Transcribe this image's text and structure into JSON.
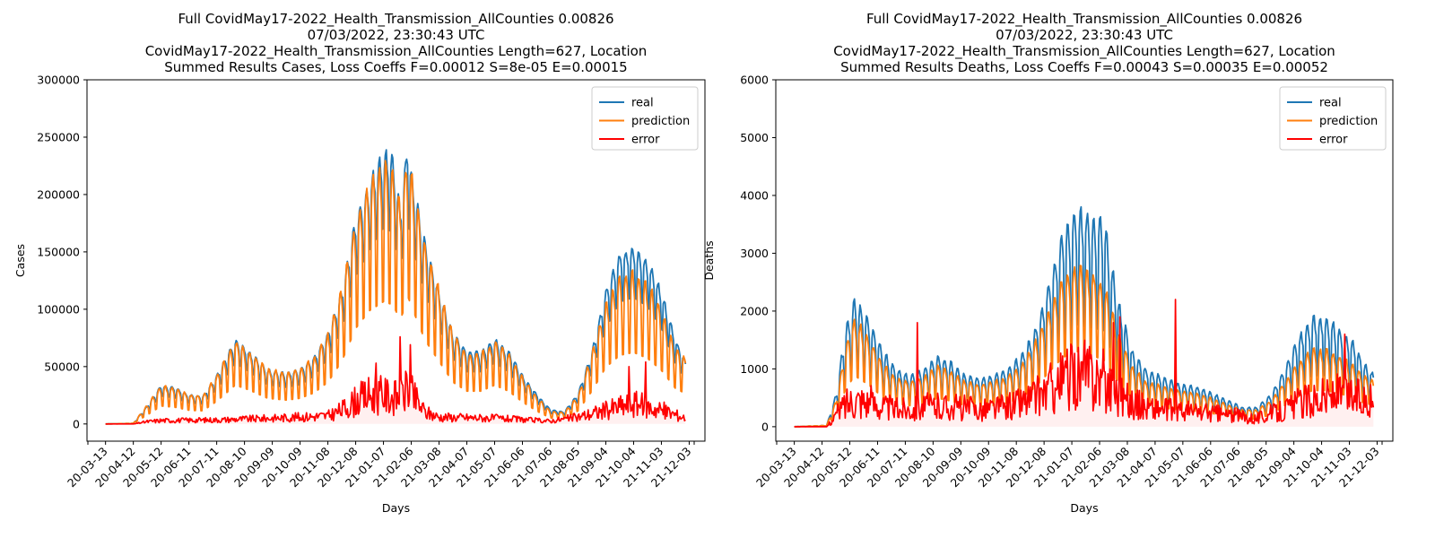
{
  "chart_data": [
    {
      "type": "line",
      "title_lines": [
        "Full CovidMay17-2022_Health_Transmission_AllCounties 0.00826",
        "07/03/2022, 23:30:43 UTC",
        "CovidMay17-2022_Health_Transmission_AllCounties Length=627, Location",
        "Summed Results Cases, Loss Coeffs F=0.00012 S=8e-05 E=0.00015"
      ],
      "xlabel": "Days",
      "ylabel": "Cases",
      "ylim": [
        -15000,
        300000
      ],
      "yticks": [
        "0",
        "50000",
        "100000",
        "150000",
        "200000",
        "250000",
        "300000"
      ],
      "xticks": [
        "20-03-13",
        "20-04-12",
        "20-05-12",
        "20-06-11",
        "20-07-11",
        "20-08-10",
        "20-09-09",
        "20-10-09",
        "20-11-08",
        "20-12-08",
        "21-01-07",
        "21-02-06",
        "21-03-08",
        "21-04-07",
        "21-05-07",
        "21-06-06",
        "21-07-06",
        "21-08-05",
        "21-09-04",
        "21-10-04",
        "21-11-03",
        "21-12-03"
      ],
      "x_range_days": [
        -20,
        647
      ],
      "length": 627,
      "legend": [
        "real",
        "prediction",
        "error"
      ],
      "legend_position": "upper right",
      "colors": {
        "real": "#1f77b4",
        "prediction": "#ff7f0e",
        "error": "#ff0000"
      },
      "series": [
        {
          "name": "real",
          "anchors": [
            [
              0,
              0
            ],
            [
              30,
              500
            ],
            [
              45,
              15000
            ],
            [
              60,
              32000
            ],
            [
              75,
              30000
            ],
            [
              90,
              24000
            ],
            [
              105,
              23000
            ],
            [
              120,
              40000
            ],
            [
              140,
              70000
            ],
            [
              155,
              60000
            ],
            [
              175,
              45000
            ],
            [
              195,
              42000
            ],
            [
              210,
              45000
            ],
            [
              225,
              55000
            ],
            [
              240,
              75000
            ],
            [
              255,
              110000
            ],
            [
              270,
              170000
            ],
            [
              285,
              200000
            ],
            [
              300,
              225000
            ],
            [
              310,
              220000
            ],
            [
              318,
              180000
            ],
            [
              322,
              200000
            ],
            [
              326,
              235000
            ],
            [
              332,
              200000
            ],
            [
              345,
              150000
            ],
            [
              360,
              110000
            ],
            [
              375,
              75000
            ],
            [
              390,
              60000
            ],
            [
              405,
              60000
            ],
            [
              420,
              70000
            ],
            [
              435,
              60000
            ],
            [
              450,
              40000
            ],
            [
              465,
              25000
            ],
            [
              480,
              12000
            ],
            [
              495,
              10000
            ],
            [
              510,
              25000
            ],
            [
              525,
              60000
            ],
            [
              540,
              110000
            ],
            [
              555,
              140000
            ],
            [
              570,
              145000
            ],
            [
              585,
              135000
            ],
            [
              600,
              110000
            ],
            [
              615,
              70000
            ],
            [
              627,
              50000
            ]
          ],
          "weekly_amp": 0.15
        },
        {
          "name": "prediction",
          "anchors": [
            [
              0,
              0
            ],
            [
              30,
              500
            ],
            [
              45,
              15000
            ],
            [
              60,
              30000
            ],
            [
              75,
              28000
            ],
            [
              90,
              23000
            ],
            [
              105,
              22000
            ],
            [
              120,
              38000
            ],
            [
              140,
              65000
            ],
            [
              155,
              57000
            ],
            [
              175,
              43000
            ],
            [
              195,
              40000
            ],
            [
              210,
              43000
            ],
            [
              225,
              52000
            ],
            [
              240,
              70000
            ],
            [
              255,
              105000
            ],
            [
              270,
              160000
            ],
            [
              285,
              190000
            ],
            [
              300,
              205000
            ],
            [
              310,
              200000
            ],
            [
              318,
              175000
            ],
            [
              322,
              190000
            ],
            [
              326,
              215000
            ],
            [
              332,
              190000
            ],
            [
              345,
              140000
            ],
            [
              360,
              105000
            ],
            [
              375,
              70000
            ],
            [
              390,
              55000
            ],
            [
              405,
              55000
            ],
            [
              420,
              65000
            ],
            [
              435,
              55000
            ],
            [
              450,
              37000
            ],
            [
              465,
              22000
            ],
            [
              480,
              10000
            ],
            [
              495,
              9000
            ],
            [
              510,
              22000
            ],
            [
              525,
              55000
            ],
            [
              540,
              95000
            ],
            [
              555,
              115000
            ],
            [
              570,
              120000
            ],
            [
              585,
              110000
            ],
            [
              600,
              90000
            ],
            [
              615,
              60000
            ],
            [
              627,
              50000
            ]
          ],
          "weekly_amp": 0.3
        },
        {
          "name": "error",
          "anchors": [
            [
              0,
              0
            ],
            [
              30,
              0
            ],
            [
              45,
              2000
            ],
            [
              60,
              3000
            ],
            [
              120,
              3500
            ],
            [
              180,
              5000
            ],
            [
              240,
              7000
            ],
            [
              255,
              12000
            ],
            [
              270,
              20000
            ],
            [
              285,
              25000
            ],
            [
              300,
              25000
            ],
            [
              318,
              22000
            ],
            [
              326,
              30000
            ],
            [
              345,
              10000
            ],
            [
              360,
              6000
            ],
            [
              420,
              5000
            ],
            [
              480,
              2500
            ],
            [
              510,
              6000
            ],
            [
              540,
              12000
            ],
            [
              570,
              18000
            ],
            [
              600,
              12000
            ],
            [
              627,
              5000
            ]
          ],
          "spikes": [
            [
              292,
              53000
            ],
            [
              318,
              76000
            ],
            [
              329,
              69000
            ],
            [
              325,
              43000
            ],
            [
              565,
              50000
            ],
            [
              583,
              54000
            ]
          ]
        }
      ]
    },
    {
      "type": "line",
      "title_lines": [
        "Full CovidMay17-2022_Health_Transmission_AllCounties 0.00826",
        "07/03/2022, 23:30:43 UTC",
        "CovidMay17-2022_Health_Transmission_AllCounties Length=627, Location",
        "Summed Results Deaths, Loss Coeffs F=0.00043 S=0.00035 E=0.00052"
      ],
      "xlabel": "Days",
      "ylabel": "Deaths",
      "ylim": [
        -250,
        6000
      ],
      "yticks": [
        "0",
        "1000",
        "2000",
        "3000",
        "4000",
        "5000",
        "6000"
      ],
      "xticks": [
        "20-03-13",
        "20-04-12",
        "20-05-12",
        "20-06-11",
        "20-07-11",
        "20-08-10",
        "20-09-09",
        "20-10-09",
        "20-11-08",
        "20-12-08",
        "21-01-07",
        "21-02-06",
        "21-03-08",
        "21-04-07",
        "21-05-07",
        "21-06-06",
        "21-07-06",
        "21-08-05",
        "21-09-04",
        "21-10-04",
        "21-11-03",
        "21-12-03"
      ],
      "x_range_days": [
        -20,
        647
      ],
      "length": 627,
      "legend": [
        "real",
        "prediction",
        "error"
      ],
      "legend_position": "upper right",
      "colors": {
        "real": "#1f77b4",
        "prediction": "#ff7f0e",
        "error": "#ff0000"
      },
      "series": [
        {
          "name": "real",
          "anchors": [
            [
              0,
              0
            ],
            [
              35,
              20
            ],
            [
              45,
              500
            ],
            [
              55,
              1500
            ],
            [
              65,
              2000
            ],
            [
              80,
              1700
            ],
            [
              95,
              1200
            ],
            [
              110,
              900
            ],
            [
              125,
              800
            ],
            [
              140,
              900
            ],
            [
              155,
              1100
            ],
            [
              170,
              1000
            ],
            [
              185,
              800
            ],
            [
              200,
              750
            ],
            [
              215,
              800
            ],
            [
              230,
              900
            ],
            [
              245,
              1100
            ],
            [
              260,
              1500
            ],
            [
              275,
              2200
            ],
            [
              290,
              3000
            ],
            [
              305,
              3400
            ],
            [
              320,
              3300
            ],
            [
              335,
              3200
            ],
            [
              350,
              2000
            ],
            [
              365,
              1200
            ],
            [
              380,
              900
            ],
            [
              395,
              800
            ],
            [
              410,
              700
            ],
            [
              425,
              650
            ],
            [
              440,
              600
            ],
            [
              455,
              500
            ],
            [
              470,
              400
            ],
            [
              485,
              300
            ],
            [
              500,
              300
            ],
            [
              515,
              500
            ],
            [
              530,
              900
            ],
            [
              545,
              1400
            ],
            [
              560,
              1700
            ],
            [
              575,
              1700
            ],
            [
              590,
              1500
            ],
            [
              605,
              1300
            ],
            [
              615,
              1000
            ],
            [
              627,
              800
            ]
          ],
          "weekly_amp": 0.3
        },
        {
          "name": "prediction",
          "anchors": [
            [
              0,
              0
            ],
            [
              35,
              20
            ],
            [
              45,
              400
            ],
            [
              55,
              1200
            ],
            [
              65,
              1700
            ],
            [
              80,
              1400
            ],
            [
              95,
              1000
            ],
            [
              110,
              750
            ],
            [
              125,
              700
            ],
            [
              140,
              780
            ],
            [
              155,
              950
            ],
            [
              170,
              850
            ],
            [
              185,
              700
            ],
            [
              200,
              650
            ],
            [
              215,
              700
            ],
            [
              230,
              780
            ],
            [
              245,
              950
            ],
            [
              260,
              1300
            ],
            [
              275,
              1800
            ],
            [
              290,
              2300
            ],
            [
              305,
              2500
            ],
            [
              320,
              2400
            ],
            [
              335,
              2200
            ],
            [
              350,
              1500
            ],
            [
              365,
              950
            ],
            [
              380,
              700
            ],
            [
              395,
              650
            ],
            [
              410,
              580
            ],
            [
              425,
              540
            ],
            [
              440,
              500
            ],
            [
              455,
              420
            ],
            [
              470,
              330
            ],
            [
              485,
              260
            ],
            [
              500,
              260
            ],
            [
              515,
              400
            ],
            [
              530,
              700
            ],
            [
              545,
              1000
            ],
            [
              560,
              1200
            ],
            [
              575,
              1200
            ],
            [
              590,
              1100
            ],
            [
              605,
              950
            ],
            [
              615,
              800
            ],
            [
              627,
              700
            ]
          ],
          "weekly_amp": 0.3
        },
        {
          "name": "error",
          "anchors": [
            [
              0,
              0
            ],
            [
              35,
              0
            ],
            [
              45,
              200
            ],
            [
              55,
              400
            ],
            [
              65,
              500
            ],
            [
              80,
              450
            ],
            [
              95,
              350
            ],
            [
              110,
              300
            ],
            [
              140,
              350
            ],
            [
              170,
              350
            ],
            [
              200,
              300
            ],
            [
              230,
              350
            ],
            [
              260,
              500
            ],
            [
              290,
              800
            ],
            [
              305,
              900
            ],
            [
              320,
              900
            ],
            [
              335,
              800
            ],
            [
              350,
              600
            ],
            [
              365,
              400
            ],
            [
              395,
              300
            ],
            [
              440,
              250
            ],
            [
              470,
              200
            ],
            [
              500,
              150
            ],
            [
              530,
              300
            ],
            [
              560,
              500
            ],
            [
              590,
              550
            ],
            [
              615,
              500
            ],
            [
              627,
              400
            ]
          ],
          "spikes": [
            [
              133,
              1800
            ],
            [
              412,
              2200
            ],
            [
              352,
              1900
            ],
            [
              345,
              1800
            ],
            [
              595,
              1600
            ]
          ]
        }
      ]
    }
  ]
}
